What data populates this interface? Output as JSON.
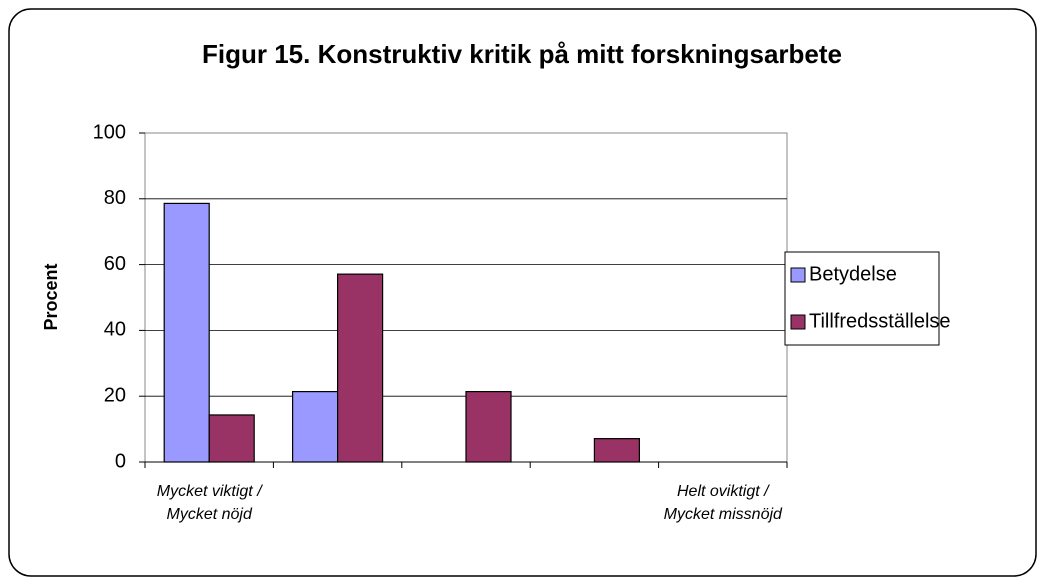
{
  "chart_data": {
    "type": "bar",
    "title": "Figur 15. Konstruktiv kritik på mitt forskningsarbete",
    "y_label": "Procent",
    "categories": [
      "Mycket viktigt / Mycket nöjd",
      null,
      null,
      null,
      "Helt oviktigt / Mycket missnöjd"
    ],
    "series": [
      {
        "name": "Betydelse",
        "color": "#9999ff",
        "values": [
          78.6,
          21.4,
          0,
          0,
          0
        ]
      },
      {
        "name": "Tillfredsställelse",
        "color": "#993366",
        "values": [
          14.3,
          57.1,
          21.4,
          7.1,
          0
        ]
      }
    ],
    "ylim": [
      0,
      100
    ],
    "yticks": [
      0,
      20,
      40,
      60,
      80,
      100
    ],
    "grid": true,
    "legend": "right"
  }
}
